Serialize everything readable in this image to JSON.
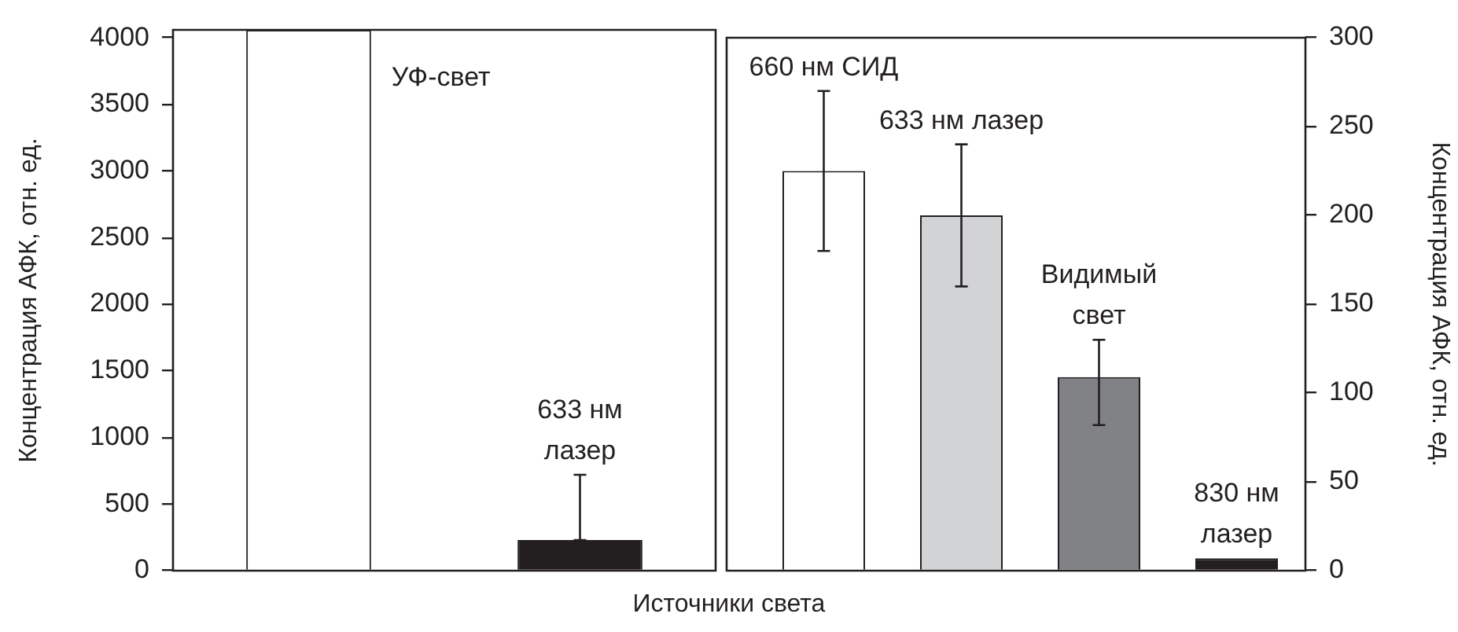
{
  "chart_data": [
    {
      "type": "bar",
      "categories": [
        "УФ-свет",
        "633 нм лазер"
      ],
      "values": [
        4060,
        230
      ],
      "colors": [
        "#ffffff",
        "#231f20"
      ],
      "errors": [
        null,
        [
          230,
          720
        ]
      ],
      "ylim": [
        0,
        4060
      ],
      "yticks": [
        0,
        500,
        1000,
        1500,
        2000,
        2500,
        3000,
        3500,
        4000
      ],
      "ylabel": "Концентрация АФК, отн. ед.",
      "xlabel": "Источники света",
      "tick_labels": "y"
    },
    {
      "type": "bar",
      "categories": [
        "660 нм СИД",
        "633 нм лазер",
        "Видимый свет",
        "830 нм лазер"
      ],
      "colors": [
        "#ffffff",
        "#d1d3d4",
        "#808285",
        "#231f20"
      ],
      "values": [
        225,
        200,
        109,
        7
      ],
      "errors": [
        [
          180,
          270
        ],
        [
          160,
          240
        ],
        [
          82,
          130
        ],
        null
      ],
      "ylim": [
        0,
        300
      ],
      "yticks": [
        0,
        50,
        100,
        150,
        200,
        250,
        300
      ],
      "ylabel": "Концентрация АФК, отн. ед.",
      "tick_labels": "y"
    }
  ]
}
